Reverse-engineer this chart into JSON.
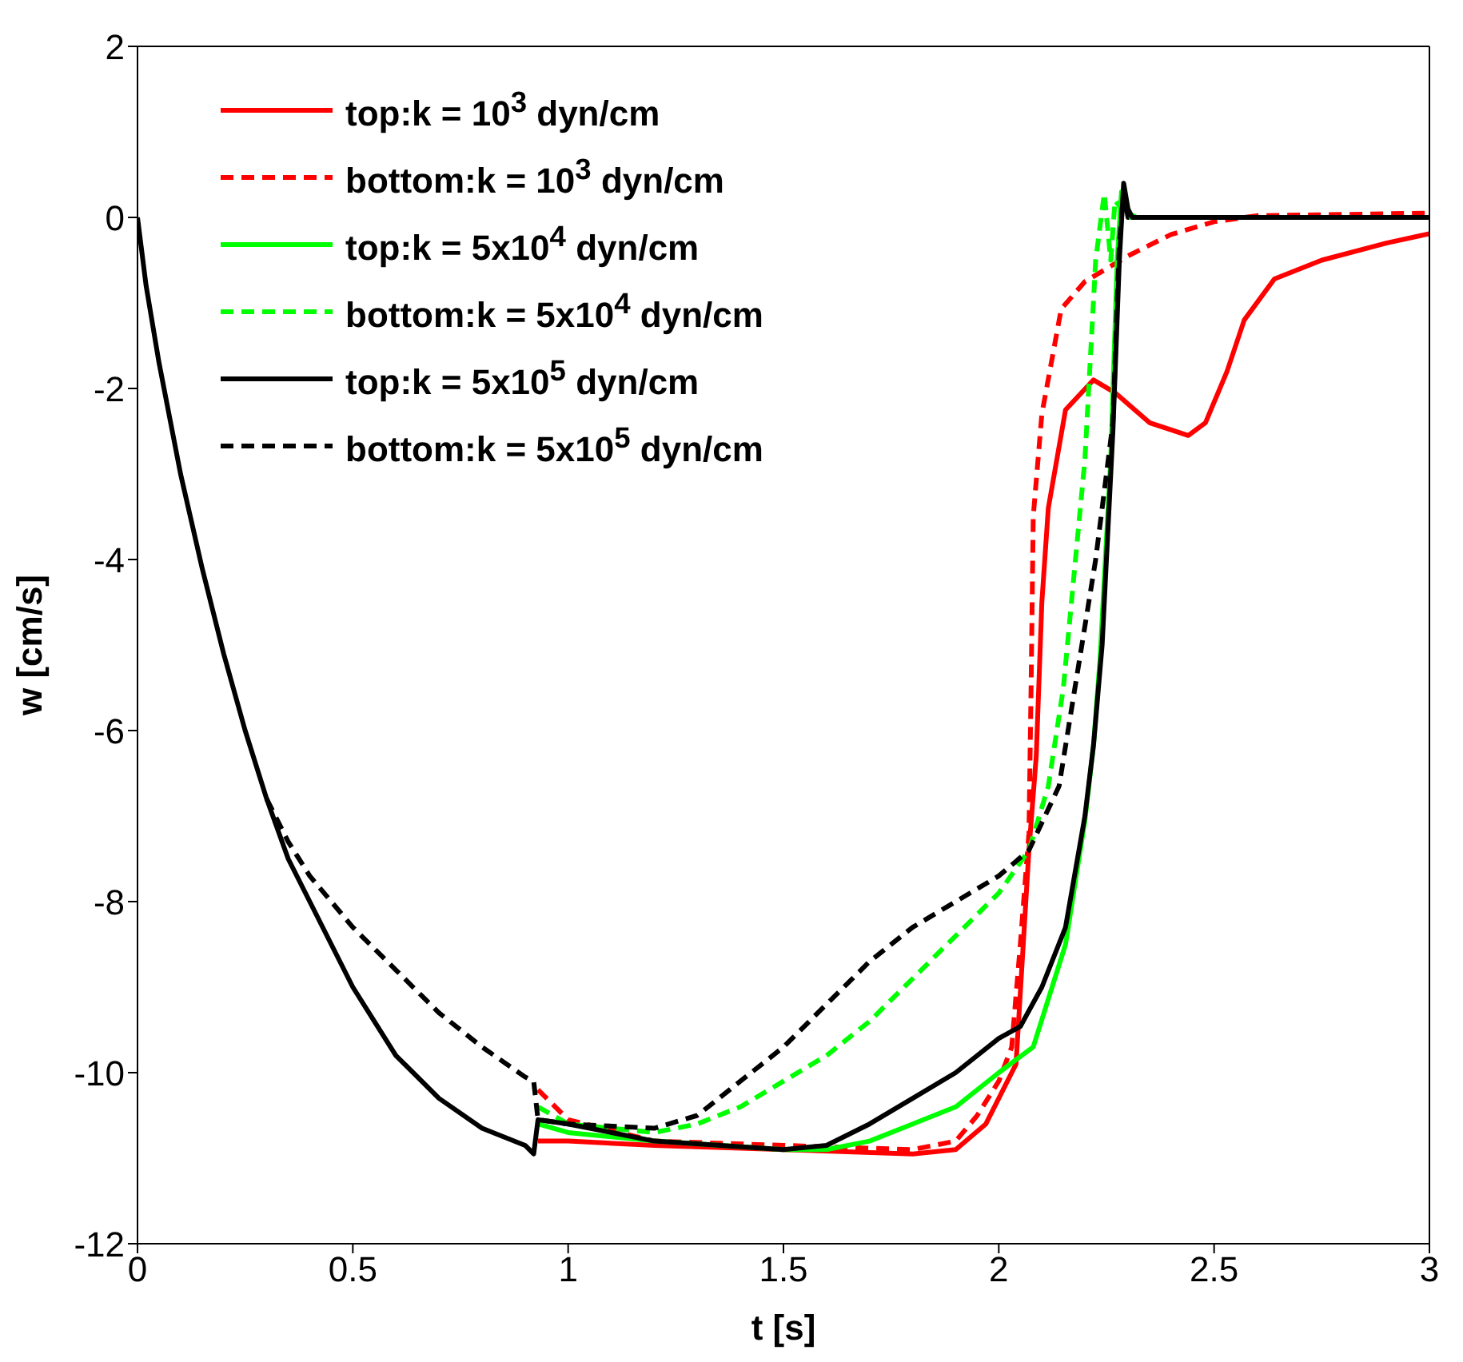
{
  "chart_data": {
    "type": "line",
    "xlabel": "t [s]",
    "ylabel": "w [cm/s]",
    "xlim": [
      0,
      3
    ],
    "ylim": [
      -12,
      2
    ],
    "xticks": [
      0,
      0.5,
      1,
      1.5,
      2,
      2.5,
      3
    ],
    "yticks": [
      -12,
      -10,
      -8,
      -6,
      -4,
      -2,
      0,
      2
    ],
    "grid": false,
    "legend": "top left",
    "marker": "none",
    "series": [
      {
        "name": "top:k = 10$^{3}$ dyn/cm",
        "color": "#ff0000",
        "line_style": "solid",
        "x": [
          0.93,
          1.0,
          1.2,
          1.5,
          1.8,
          1.9,
          1.97,
          2.0,
          2.04,
          2.07,
          2.087,
          2.1,
          2.115,
          2.155,
          2.22,
          2.27,
          2.35,
          2.44,
          2.48,
          2.53,
          2.57,
          2.64,
          2.75,
          2.9,
          3.0
        ],
        "values": [
          -10.8,
          -10.8,
          -10.85,
          -10.9,
          -10.95,
          -10.9,
          -10.6,
          -10.3,
          -9.9,
          -7.4,
          -6.3,
          -4.5,
          -3.4,
          -2.25,
          -1.9,
          -2.05,
          -2.4,
          -2.55,
          -2.4,
          -1.8,
          -1.2,
          -0.72,
          -0.5,
          -0.3,
          -0.19
        ]
      },
      {
        "name": "bottom:k = 10$^{3}$ dyn/cm",
        "color": "#ff0000",
        "line_style": "dashed",
        "x": [
          0.93,
          1.0,
          1.2,
          1.5,
          1.8,
          1.9,
          1.95,
          2.0,
          2.03,
          2.05,
          2.07,
          2.075,
          2.08,
          2.1,
          2.145,
          2.2,
          2.3,
          2.4,
          2.5,
          2.6,
          3.0
        ],
        "values": [
          -10.2,
          -10.55,
          -10.8,
          -10.85,
          -10.9,
          -10.8,
          -10.5,
          -10.1,
          -9.7,
          -8.5,
          -7.2,
          -5.5,
          -3.5,
          -2.3,
          -1.07,
          -0.75,
          -0.45,
          -0.2,
          -0.05,
          0.02,
          0.05
        ]
      },
      {
        "name": "top:k = 5x10$^{4}$ dyn/cm",
        "color": "#00ff00",
        "line_style": "solid",
        "x": [
          0.93,
          1.0,
          1.2,
          1.5,
          1.6,
          1.7,
          1.8,
          1.9,
          2.0,
          2.08,
          2.155,
          2.2,
          2.22,
          2.235,
          2.26,
          2.275,
          2.285,
          2.3,
          2.32,
          3.0
        ],
        "values": [
          -10.6,
          -10.7,
          -10.8,
          -10.9,
          -10.9,
          -10.8,
          -10.6,
          -10.4,
          -10.0,
          -9.7,
          -8.5,
          -7.05,
          -6.17,
          -5.17,
          -2.83,
          -0.5,
          0.3,
          0.05,
          0,
          0
        ]
      },
      {
        "name": "bottom:k = 5x10$^{4}$ dyn/cm",
        "color": "#00ff00",
        "line_style": "dashed",
        "x": [
          0.93,
          1.0,
          1.2,
          1.3,
          1.4,
          1.5,
          1.6,
          1.7,
          1.8,
          1.9,
          2.0,
          2.07,
          2.115,
          2.15,
          2.2,
          2.225,
          2.245,
          2.26,
          2.27,
          2.3,
          3.0
        ],
        "values": [
          -10.4,
          -10.6,
          -10.7,
          -10.6,
          -10.4,
          -10.1,
          -9.8,
          -9.4,
          -8.9,
          -8.4,
          -7.9,
          -7.4,
          -6.65,
          -5.5,
          -2.83,
          -0.5,
          0.28,
          -0.5,
          0.2,
          0,
          0
        ]
      },
      {
        "name": "top:k = 5x10$^{5}$ dyn/cm",
        "color": "#000000",
        "line_style": "solid",
        "x": [
          0,
          0.02,
          0.05,
          0.1,
          0.15,
          0.2,
          0.25,
          0.3,
          0.35,
          0.4,
          0.45,
          0.5,
          0.6,
          0.7,
          0.8,
          0.9,
          0.92,
          0.93,
          1.0,
          1.2,
          1.5,
          1.6,
          1.7,
          1.8,
          1.9,
          2.0,
          2.05,
          2.1,
          2.155,
          2.2,
          2.22,
          2.24,
          2.265,
          2.28,
          2.29,
          2.3,
          2.31,
          3.0
        ],
        "values": [
          0,
          -0.8,
          -1.7,
          -3.0,
          -4.1,
          -5.1,
          -6.0,
          -6.8,
          -7.5,
          -8.0,
          -8.5,
          -9.0,
          -9.8,
          -10.3,
          -10.65,
          -10.85,
          -10.95,
          -10.55,
          -10.6,
          -10.8,
          -10.9,
          -10.85,
          -10.6,
          -10.3,
          -10.0,
          -9.6,
          -9.46,
          -9.0,
          -8.3,
          -7.0,
          -6.17,
          -5.0,
          -2.5,
          -0.5,
          0.4,
          0.1,
          0,
          0
        ]
      },
      {
        "name": "bottom:k = 5x10$^{5}$ dyn/cm",
        "color": "#000000",
        "line_style": "dashed",
        "x": [
          0.3,
          0.35,
          0.4,
          0.5,
          0.6,
          0.7,
          0.8,
          0.9,
          0.92,
          0.93,
          1.0,
          1.2,
          1.3,
          1.4,
          1.5,
          1.6,
          1.7,
          1.8,
          1.9,
          2.0,
          2.07,
          2.14,
          2.225,
          2.265,
          2.28,
          2.29,
          2.3,
          3.0
        ],
        "values": [
          -6.8,
          -7.3,
          -7.7,
          -8.3,
          -8.8,
          -9.3,
          -9.7,
          -10.05,
          -10.1,
          -10.55,
          -10.6,
          -10.65,
          -10.5,
          -10.1,
          -9.7,
          -9.2,
          -8.7,
          -8.3,
          -8.0,
          -7.7,
          -7.4,
          -6.65,
          -4.0,
          -2.4,
          -0.3,
          0.3,
          0,
          0
        ]
      }
    ]
  }
}
